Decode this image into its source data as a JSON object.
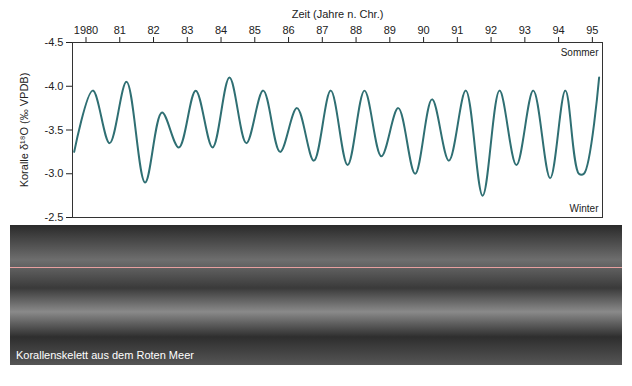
{
  "chart_data": {
    "type": "line",
    "xlabel": "Zeit (Jahre n. Chr.)",
    "ylabel": "Koralle δ¹⁸O (‰ VPDB)",
    "caption": "Korallenskelett aus dem Roten Meer",
    "annotations": [
      "Sommer",
      "Winter"
    ],
    "color": "#2f6f73",
    "x": [
      1979.65,
      1980.2,
      1980.7,
      1981.2,
      1981.75,
      1982.25,
      1982.75,
      1983.25,
      1983.75,
      1984.25,
      1984.75,
      1985.25,
      1985.75,
      1986.25,
      1986.75,
      1987.25,
      1987.75,
      1988.25,
      1988.75,
      1989.25,
      1989.75,
      1990.25,
      1990.75,
      1991.25,
      1991.75,
      1992.25,
      1992.75,
      1993.25,
      1993.75,
      1994.2,
      1994.6,
      1994.75,
      1995.2
    ],
    "values": [
      -3.25,
      -3.95,
      -3.35,
      -4.05,
      -2.9,
      -3.7,
      -3.3,
      -3.95,
      -3.3,
      -4.1,
      -3.35,
      -3.95,
      -3.25,
      -3.75,
      -3.15,
      -3.95,
      -3.1,
      -3.95,
      -3.2,
      -3.75,
      -3.0,
      -3.85,
      -3.15,
      -3.95,
      -2.75,
      -3.95,
      -3.1,
      -3.95,
      -2.95,
      -3.95,
      -3.0,
      -3.0,
      -4.1
    ],
    "xlim": [
      1979.6,
      1995.3
    ],
    "xticks": [
      1980,
      {
        "value": 1981,
        "label": "81"
      },
      {
        "value": 1982,
        "label": "82"
      },
      {
        "value": 1983,
        "label": "83"
      },
      {
        "value": 1984,
        "label": "84"
      },
      {
        "value": 1985,
        "label": "85"
      },
      {
        "value": 1986,
        "label": "86"
      },
      {
        "value": 1987,
        "label": "87"
      },
      {
        "value": 1988,
        "label": "88"
      },
      {
        "value": 1989,
        "label": "89"
      },
      {
        "value": 1990,
        "label": "90"
      },
      {
        "value": 1991,
        "label": "91"
      },
      {
        "value": 1992,
        "label": "92"
      },
      {
        "value": 1993,
        "label": "93"
      },
      {
        "value": 1994,
        "label": "94"
      },
      {
        "value": 1995,
        "label": "95"
      }
    ],
    "ylim": [
      -4.5,
      -2.5
    ],
    "yticks": [
      -4.5,
      {
        "value": -4,
        "label": "-4.0"
      },
      -3.5,
      {
        "value": -3,
        "label": "-3.0"
      },
      -2.5
    ]
  }
}
